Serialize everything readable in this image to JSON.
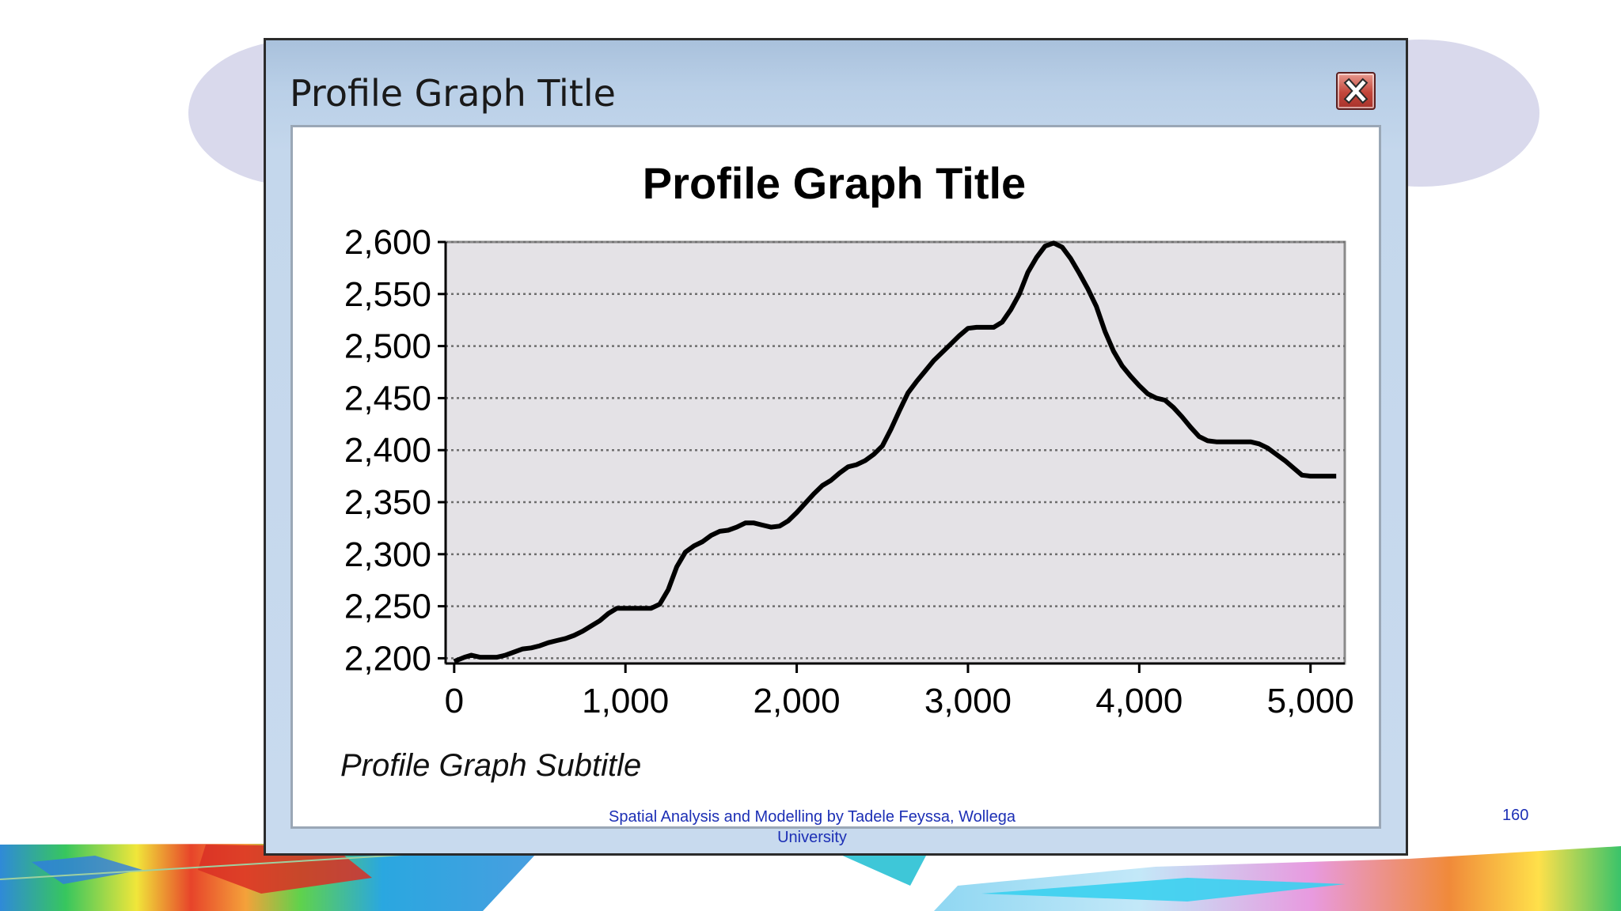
{
  "dialog": {
    "title": "Profile Graph Title",
    "close_icon": "close-x-icon"
  },
  "chart_data": {
    "type": "line",
    "title": "Profile Graph Title",
    "subtitle": "Profile Graph Subtitle",
    "xlabel": "",
    "ylabel": "",
    "xlim": [
      -50,
      5200
    ],
    "ylim": [
      2195,
      2600
    ],
    "x_ticks": [
      0,
      1000,
      2000,
      3000,
      4000,
      5000
    ],
    "x_tick_labels": [
      "0",
      "1,000",
      "2,000",
      "3,000",
      "4,000",
      "5,000"
    ],
    "y_ticks": [
      2200,
      2250,
      2300,
      2350,
      2400,
      2450,
      2500,
      2550,
      2600
    ],
    "y_tick_labels": [
      "2,200",
      "2,250",
      "2,300",
      "2,350",
      "2,400",
      "2,450",
      "2,500",
      "2,550",
      "2,600"
    ],
    "grid": "horizontal-dotted",
    "legend": "none",
    "colors": {
      "plot_background": "#e4e2e6",
      "line": "#000000",
      "grid": "#6e6e6e"
    },
    "series": [
      {
        "x": [
          0,
          60,
          100,
          150,
          200,
          250,
          300,
          350,
          400,
          450,
          500,
          550,
          600,
          650,
          700,
          750,
          800,
          850,
          900,
          950,
          1000,
          1050,
          1100,
          1150,
          1200,
          1250,
          1300,
          1350,
          1400,
          1450,
          1500,
          1550,
          1600,
          1650,
          1700,
          1750,
          1800,
          1850,
          1900,
          1950,
          2000,
          2050,
          2100,
          2150,
          2200,
          2250,
          2300,
          2350,
          2400,
          2450,
          2500,
          2550,
          2600,
          2650,
          2700,
          2750,
          2800,
          2850,
          2900,
          2950,
          3000,
          3050,
          3100,
          3150,
          3200,
          3250,
          3300,
          3350,
          3400,
          3450,
          3500,
          3550,
          3600,
          3650,
          3700,
          3750,
          3800,
          3850,
          3900,
          3950,
          4000,
          4050,
          4100,
          4150,
          4200,
          4250,
          4300,
          4350,
          4400,
          4450,
          4500,
          4550,
          4600,
          4650,
          4700,
          4750,
          4800,
          4850,
          4900,
          4950,
          5000,
          5050,
          5100,
          5150
        ],
        "y": [
          2197,
          2201,
          2203,
          2201,
          2201,
          2201,
          2203,
          2206,
          2209,
          2210,
          2212,
          2215,
          2217,
          2219,
          2222,
          2226,
          2231,
          2236,
          2243,
          2248,
          2248,
          2248,
          2248,
          2248,
          2252,
          2266,
          2288,
          2302,
          2308,
          2312,
          2318,
          2322,
          2323,
          2326,
          2330,
          2330,
          2328,
          2326,
          2327,
          2332,
          2340,
          2349,
          2358,
          2366,
          2371,
          2378,
          2384,
          2386,
          2390,
          2396,
          2404,
          2420,
          2438,
          2455,
          2466,
          2476,
          2486,
          2494,
          2502,
          2510,
          2517,
          2518,
          2518,
          2518,
          2523,
          2535,
          2550,
          2571,
          2585,
          2596,
          2599,
          2595,
          2584,
          2570,
          2555,
          2538,
          2514,
          2495,
          2481,
          2471,
          2462,
          2454,
          2450,
          2448,
          2441,
          2432,
          2422,
          2413,
          2409,
          2408,
          2408,
          2408,
          2408,
          2408,
          2406,
          2402,
          2396,
          2390,
          2383,
          2376,
          2375,
          2375,
          2375,
          2375
        ]
      }
    ]
  },
  "footer": {
    "line1": "Spatial  Analysis and Modelling by Tadele Feyssa, Wollega",
    "line2": "University",
    "page_number": "160"
  }
}
